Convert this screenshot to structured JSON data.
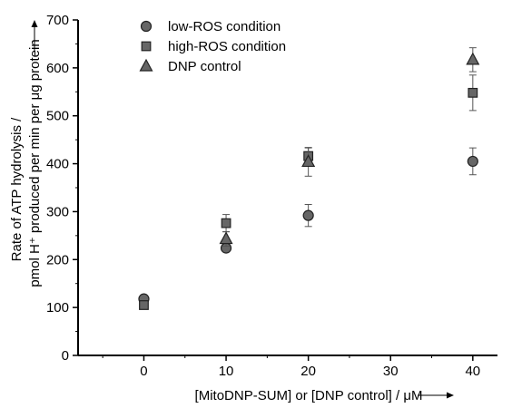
{
  "chart_data": {
    "type": "scatter",
    "xlabel": "[MitoDNP-SUM] or [DNP control] / μM",
    "ylabel_line1": "Rate of ATP hydrolysis /",
    "ylabel_line2": "pmol H⁺ produced per min per μg protein",
    "xlim": [
      -8,
      43
    ],
    "ylim": [
      0,
      700
    ],
    "xticks": [
      0,
      10,
      20,
      30,
      40
    ],
    "yticks": [
      0,
      100,
      200,
      300,
      400,
      500,
      600,
      700
    ],
    "grid": false,
    "legend_position": "top-left",
    "series": [
      {
        "name": "low-ROS condition",
        "marker": "circle",
        "color": "#666666",
        "points": [
          {
            "x": 0,
            "y": 118,
            "err": 5
          },
          {
            "x": 10,
            "y": 224,
            "err": 8
          },
          {
            "x": 20,
            "y": 292,
            "err": 23
          },
          {
            "x": 40,
            "y": 405,
            "err": 28
          }
        ]
      },
      {
        "name": "high-ROS condition",
        "marker": "square",
        "color": "#666666",
        "points": [
          {
            "x": 0,
            "y": 105,
            "err": 4
          },
          {
            "x": 10,
            "y": 276,
            "err": 18
          },
          {
            "x": 20,
            "y": 416,
            "err": 17
          },
          {
            "x": 40,
            "y": 548,
            "err": 37
          }
        ]
      },
      {
        "name": "DNP control",
        "marker": "triangle",
        "color": "#666666",
        "points": [
          {
            "x": 10,
            "y": 243,
            "err": 15
          },
          {
            "x": 20,
            "y": 404,
            "err": 30
          },
          {
            "x": 40,
            "y": 617,
            "err": 25
          }
        ]
      }
    ]
  }
}
